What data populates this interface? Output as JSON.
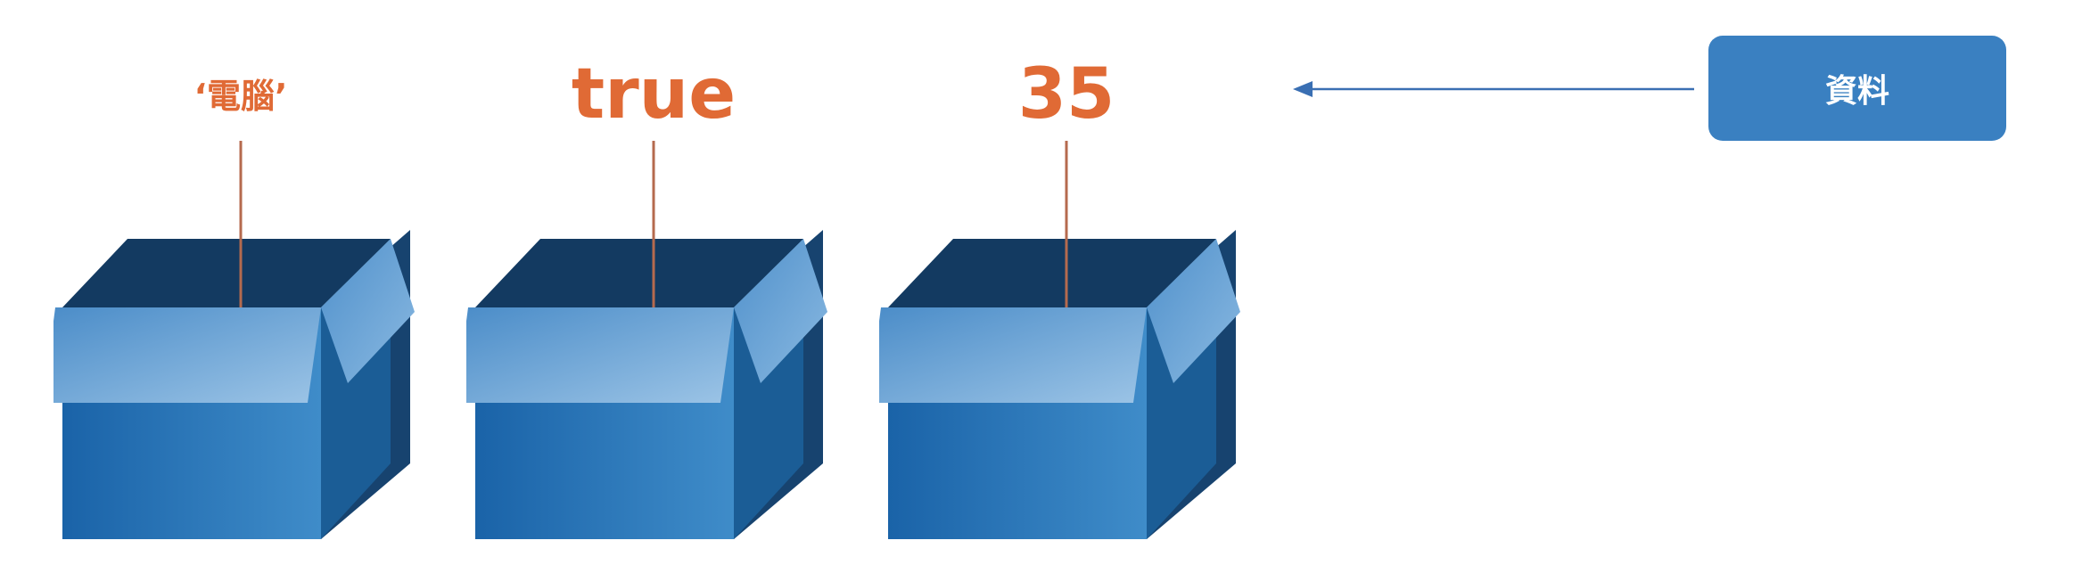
{
  "boxes": [
    {
      "label": "‘電腦’",
      "size": "small"
    },
    {
      "label": "true",
      "size": "large"
    },
    {
      "label": "35",
      "size": "large"
    }
  ],
  "data_button": {
    "label": "資料"
  },
  "colors": {
    "label_text": "#e06a35",
    "connector_line": "#b56a4e",
    "arrow": "#3a6fb3",
    "button_bg": "#3a80c1",
    "box_front": "#2470b3",
    "box_side": "#1b5d96",
    "box_flap": "#6da5d6",
    "box_inside": "#17436f"
  },
  "icons": {
    "box": "open-box-icon",
    "arrow": "arrow-left-icon"
  }
}
